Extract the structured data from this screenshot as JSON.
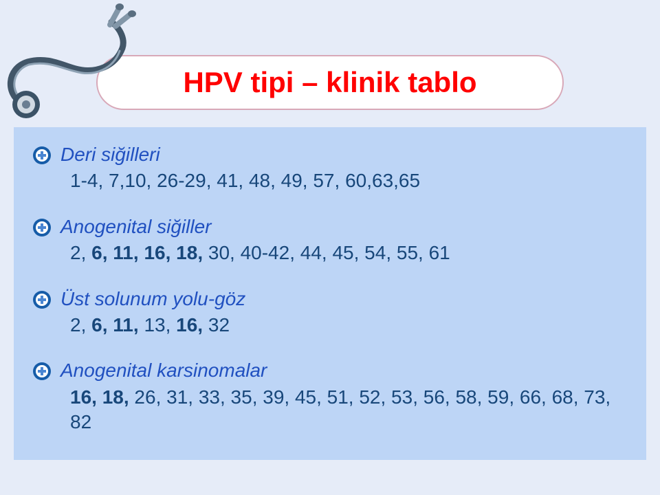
{
  "title": "HPV tipi – klinik tablo",
  "colors": {
    "page_bg": "#e6ecf8",
    "content_bg": "#bdd5f6",
    "title_color": "#ff0000",
    "title_box_bg": "#ffffff",
    "title_box_border": "#d8a8b8",
    "heading_color": "#2050c0",
    "value_color": "#18477a",
    "bullet_outer": "#165ca8",
    "bullet_inner": "#ffffff",
    "bullet_cross": "#4a86d2"
  },
  "typography": {
    "family": "Comic Sans MS",
    "title_fontsize": 42,
    "body_fontsize": 28,
    "heading_style": "italic"
  },
  "sections": [
    {
      "heading": "Deri siğilleri",
      "text": "1-4, 7,10, 26-29, 41, 48, 49, 57, 60,63,65",
      "bold_runs": []
    },
    {
      "heading": "Anogenital siğiller",
      "text": "2, 6, 11, 16, 18, 30, 40-42, 44, 45, 54, 55, 61",
      "bold_runs": [
        "6,",
        "11,",
        "16,",
        "18,"
      ]
    },
    {
      "heading": "Üst solunum yolu-göz",
      "text": "2, 6, 11, 13, 16, 32",
      "bold_runs": [
        "6,",
        "11,",
        "16,"
      ]
    },
    {
      "heading": "Anogenital karsinomalar",
      "text": "16, 18, 26, 31, 33, 35, 39, 45, 51, 52, 53, 56, 58, 59, 66, 68, 73, 82",
      "bold_runs": [
        "16,",
        "18,"
      ]
    }
  ]
}
